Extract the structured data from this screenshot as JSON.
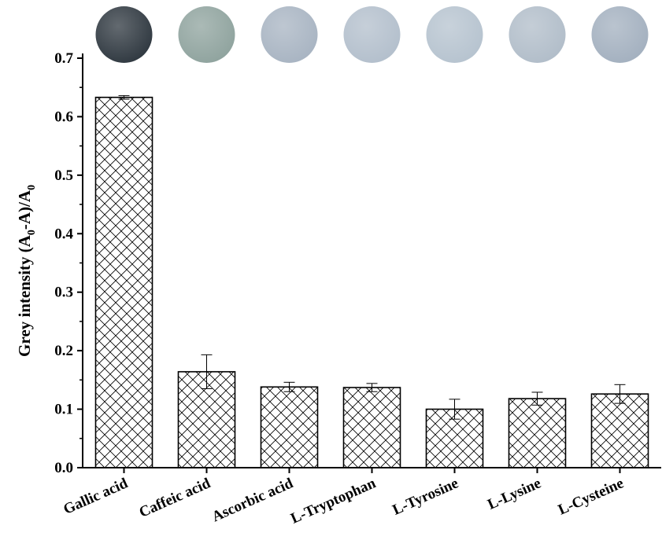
{
  "chart_data": {
    "type": "bar",
    "title": "",
    "xlabel": "",
    "ylabel": {
      "parts": [
        {
          "text": "Grey  intensity (A",
          "sub": false
        },
        {
          "text": "0",
          "sub": true
        },
        {
          "text": "-A)/A",
          "sub": false
        },
        {
          "text": "0",
          "sub": true
        }
      ]
    },
    "categories": [
      "Gallic acid",
      "Caffeic acid",
      "Ascorbic acid",
      "L-Tryptophan",
      "L-Tyrosine",
      "L-Lysine",
      "L-Cysteine"
    ],
    "values": [
      0.633,
      0.164,
      0.138,
      0.137,
      0.1,
      0.118,
      0.126
    ],
    "errors": [
      0.003,
      0.029,
      0.008,
      0.007,
      0.017,
      0.011,
      0.016
    ],
    "ylim": [
      0,
      0.7
    ],
    "yticks": [
      "0.0",
      "0.1",
      "0.2",
      "0.3",
      "0.4",
      "0.5",
      "0.6",
      "0.7"
    ],
    "bar_pattern": "cross-hatch",
    "grid": false,
    "legend": "none",
    "sample_photos": [
      {
        "category": "Gallic acid",
        "color": "#2f3840"
      },
      {
        "category": "Caffeic acid",
        "color": "#8fa39e"
      },
      {
        "category": "Ascorbic acid",
        "color": "#a8b4c2"
      },
      {
        "category": "L-Tryptophan",
        "color": "#b3bfcc"
      },
      {
        "category": "L-Tyrosine",
        "color": "#b6c3cf"
      },
      {
        "category": "L-Lysine",
        "color": "#b1bdc9"
      },
      {
        "category": "L-Cysteine",
        "color": "#a3b0bf"
      }
    ]
  }
}
